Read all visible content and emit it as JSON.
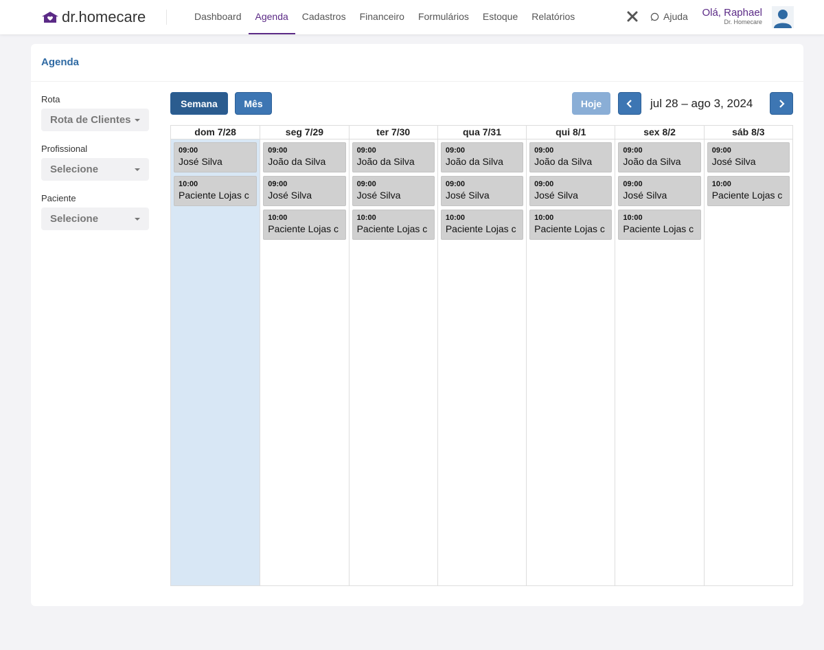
{
  "header": {
    "logo": "dr.homecare",
    "nav": [
      "Dashboard",
      "Agenda",
      "Cadastros",
      "Financeiro",
      "Formulários",
      "Estoque",
      "Relatórios"
    ],
    "help": "Ajuda",
    "greeting": "Olá, Raphael",
    "company": "Dr. Homecare"
  },
  "page": {
    "title": "Agenda"
  },
  "filters": [
    {
      "label": "Rota",
      "value": "Rota de Clientes"
    },
    {
      "label": "Profissional",
      "value": "Selecione"
    },
    {
      "label": "Paciente",
      "value": "Selecione"
    }
  ],
  "toolbar": {
    "views": [
      "Semana",
      "Mês"
    ],
    "today": "Hoje",
    "range": "jul 28 – ago 3, 2024"
  },
  "calendar": {
    "days": [
      {
        "label": "dom 7/28",
        "events": [
          {
            "time": "09:00",
            "title": "José Silva"
          },
          {
            "time": "10:00",
            "title": "Paciente Lojas c"
          }
        ]
      },
      {
        "label": "seg 7/29",
        "events": [
          {
            "time": "09:00",
            "title": "João da Silva"
          },
          {
            "time": "09:00",
            "title": "José Silva"
          },
          {
            "time": "10:00",
            "title": "Paciente Lojas c"
          }
        ]
      },
      {
        "label": "ter 7/30",
        "events": [
          {
            "time": "09:00",
            "title": "João da Silva"
          },
          {
            "time": "09:00",
            "title": "José Silva"
          },
          {
            "time": "10:00",
            "title": "Paciente Lojas c"
          }
        ]
      },
      {
        "label": "qua 7/31",
        "events": [
          {
            "time": "09:00",
            "title": "João da Silva"
          },
          {
            "time": "09:00",
            "title": "José Silva"
          },
          {
            "time": "10:00",
            "title": "Paciente Lojas c"
          }
        ]
      },
      {
        "label": "qui 8/1",
        "events": [
          {
            "time": "09:00",
            "title": "João da Silva"
          },
          {
            "time": "09:00",
            "title": "José Silva"
          },
          {
            "time": "10:00",
            "title": "Paciente Lojas c"
          }
        ]
      },
      {
        "label": "sex 8/2",
        "events": [
          {
            "time": "09:00",
            "title": "João da Silva"
          },
          {
            "time": "09:00",
            "title": "José Silva"
          },
          {
            "time": "10:00",
            "title": "Paciente Lojas c"
          }
        ]
      },
      {
        "label": "sáb 8/3",
        "events": [
          {
            "time": "09:00",
            "title": "José Silva"
          },
          {
            "time": "10:00",
            "title": "Paciente Lojas c"
          }
        ]
      }
    ]
  }
}
